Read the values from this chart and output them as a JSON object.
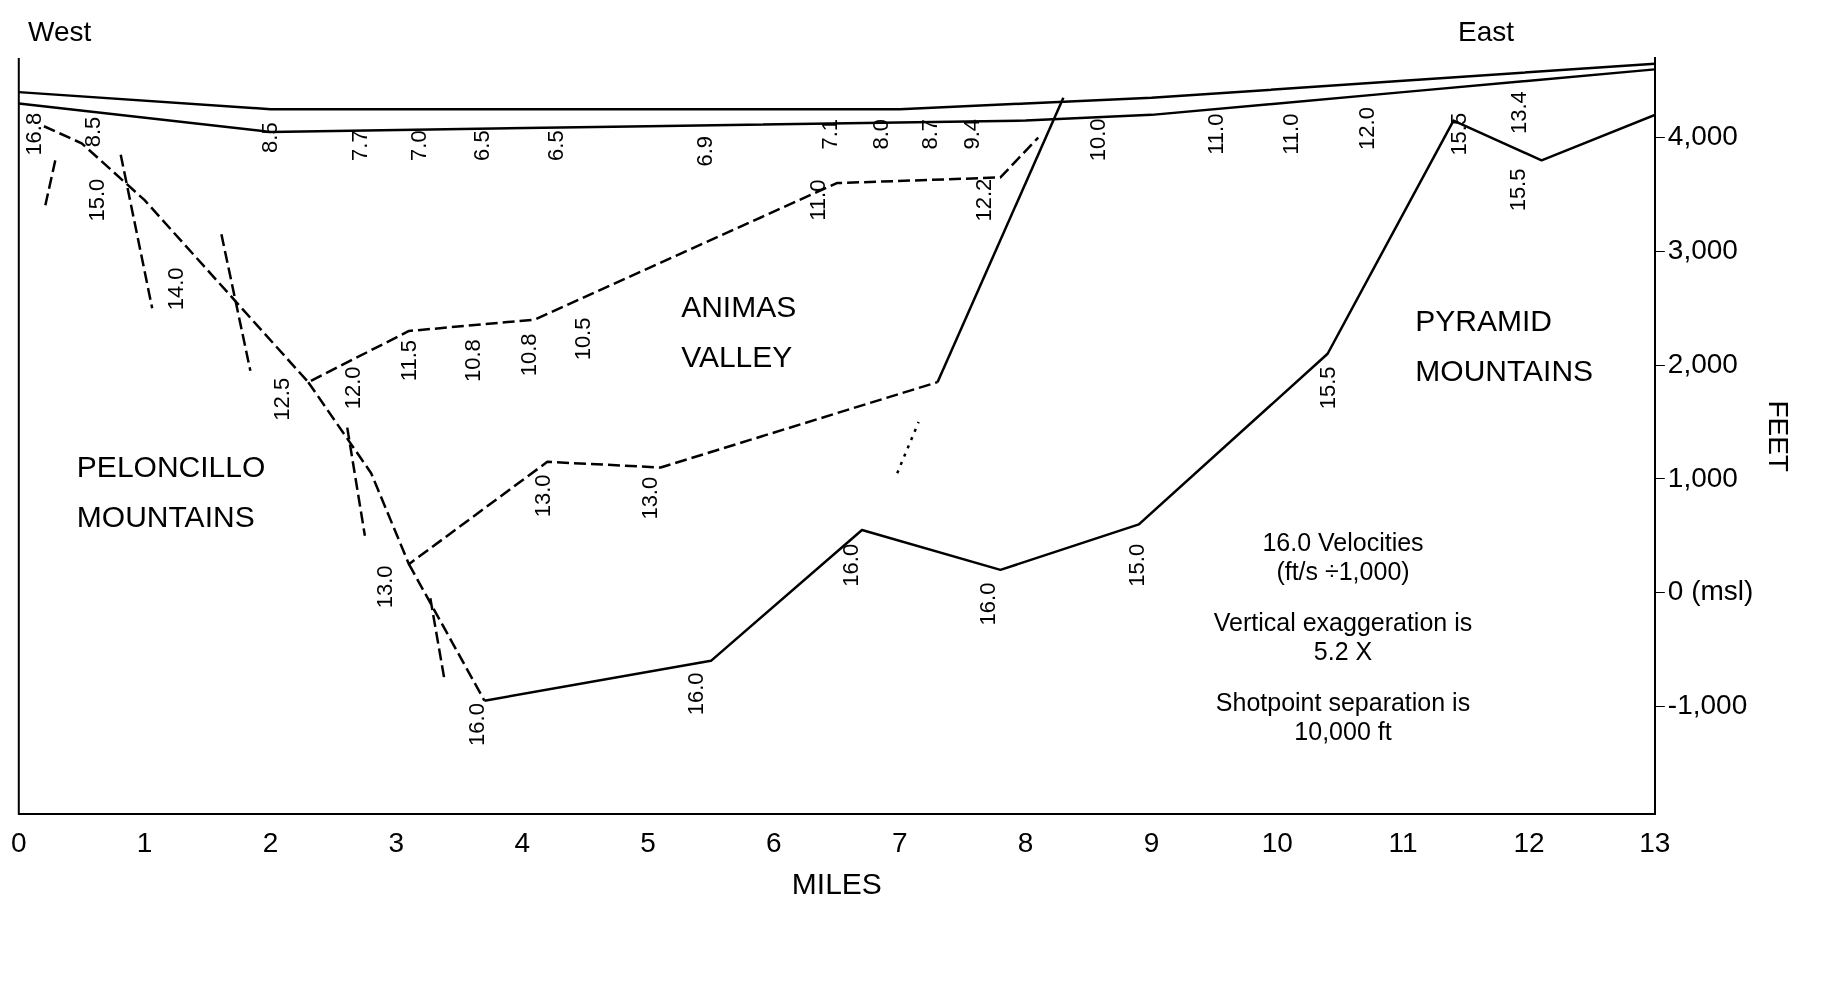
{
  "chart_data": {
    "type": "line",
    "xlabel": "MILES",
    "ylabel": "FEET",
    "xlim": [
      0,
      13
    ],
    "xticks": [
      0,
      1,
      2,
      3,
      4,
      5,
      6,
      7,
      8,
      9,
      10,
      11,
      12,
      13
    ],
    "ylim": [
      -1950,
      4700
    ],
    "yticks": [
      {
        "value": -1000,
        "label": "-1,000"
      },
      {
        "value": 0,
        "label": "0 (msl)"
      },
      {
        "value": 1000,
        "label": "1,000"
      },
      {
        "value": 2000,
        "label": "2,000"
      },
      {
        "value": 3000,
        "label": "3,000"
      },
      {
        "value": 4000,
        "label": "4,000"
      }
    ],
    "grid": false,
    "legend": false,
    "marker": "none",
    "series": [
      {
        "color": "#000000",
        "line_style": "solid",
        "x": [
          0,
          2,
          7,
          8,
          9,
          11,
          13
        ],
        "values": [
          4400,
          4250,
          4250,
          4300,
          4350,
          4500,
          4650
        ]
      },
      {
        "color": "#000000",
        "line_style": "solid",
        "x": [
          0,
          2,
          5,
          8,
          9,
          11,
          13
        ],
        "values": [
          4300,
          4050,
          4100,
          4150,
          4200,
          4400,
          4600
        ]
      },
      {
        "color": "#000000",
        "line_style": "dashed",
        "x": [
          0.2,
          0.5,
          1,
          2.3,
          3.1,
          4.1,
          6.5,
          7.8,
          8.1
        ],
        "values": [
          4100,
          3950,
          3450,
          1850,
          2300,
          2400,
          3600,
          3650,
          4000
        ]
      },
      {
        "color": "#000000",
        "line_style": "dashed",
        "x": [
          2.3,
          2.8,
          3.1,
          4.2,
          5.1,
          7.3
        ],
        "values": [
          1850,
          1050,
          250,
          1150,
          1100,
          1850
        ]
      },
      {
        "color": "#000000",
        "line_style": "dashed",
        "x": [
          3.1,
          3.7
        ],
        "values": [
          250,
          -950
        ]
      },
      {
        "color": "#000000",
        "line_style": "solid",
        "x": [
          3.7,
          5.5,
          6.7,
          7.8,
          8.9,
          10.4,
          11.4,
          12.1,
          13
        ],
        "values": [
          -950,
          -600,
          550,
          200,
          600,
          2100,
          4150,
          3800,
          4200
        ]
      },
      {
        "color": "#000000",
        "line_style": "solid",
        "x": [
          7.3,
          8.3
        ],
        "values": [
          1850,
          4350
        ]
      },
      {
        "color": "#000000",
        "line_style": "dotted",
        "x": [
          6.98,
          7.15
        ],
        "values": [
          1050,
          1500
        ]
      },
      {
        "color": "#000000",
        "line_style": "dashed",
        "x": [
          0.29,
          0.21
        ],
        "values": [
          3800,
          3400
        ]
      },
      {
        "color": "#000000",
        "line_style": "dashed",
        "x": [
          0.81,
          1.06
        ],
        "values": [
          3850,
          2500
        ]
      },
      {
        "color": "#000000",
        "line_style": "dashed",
        "x": [
          1.61,
          1.84
        ],
        "values": [
          3150,
          1950
        ]
      },
      {
        "color": "#000000",
        "line_style": "dashed",
        "x": [
          2.61,
          2.75
        ],
        "values": [
          1450,
          500
        ]
      },
      {
        "color": "#000000",
        "line_style": "dashed",
        "x": [
          3.27,
          3.38
        ],
        "values": [
          -50,
          -750
        ]
      }
    ],
    "annotations": [
      "16.8",
      "8.5",
      "8.5",
      "7.7",
      "7.0",
      "6.5",
      "6.5",
      "6.9",
      "7.1",
      "8.0",
      "8.7",
      "9.4",
      "10.0",
      "11.0",
      "11.0",
      "12.0",
      "13.4",
      "15.0",
      "14.0",
      "12.5",
      "12.0",
      "11.5",
      "10.8",
      "10.8",
      "10.5",
      "11.0",
      "12.2",
      "15.5",
      "15.5",
      "15.5",
      "13.0",
      "13.0",
      "13.0",
      "16.0",
      "16.0",
      "15.0",
      "16.0",
      "16.0",
      "ANIMAS\nVALLEY",
      "PYRAMID\nMOUNTAINS",
      "PELONCILLO\nMOUNTAINS",
      "West",
      "East",
      "16.0   Velocities\n(ft/s ÷1,000)",
      "Vertical exaggeration is\n5.2 X",
      "Shotpoint separation is\n10,000 ft"
    ]
  }
}
